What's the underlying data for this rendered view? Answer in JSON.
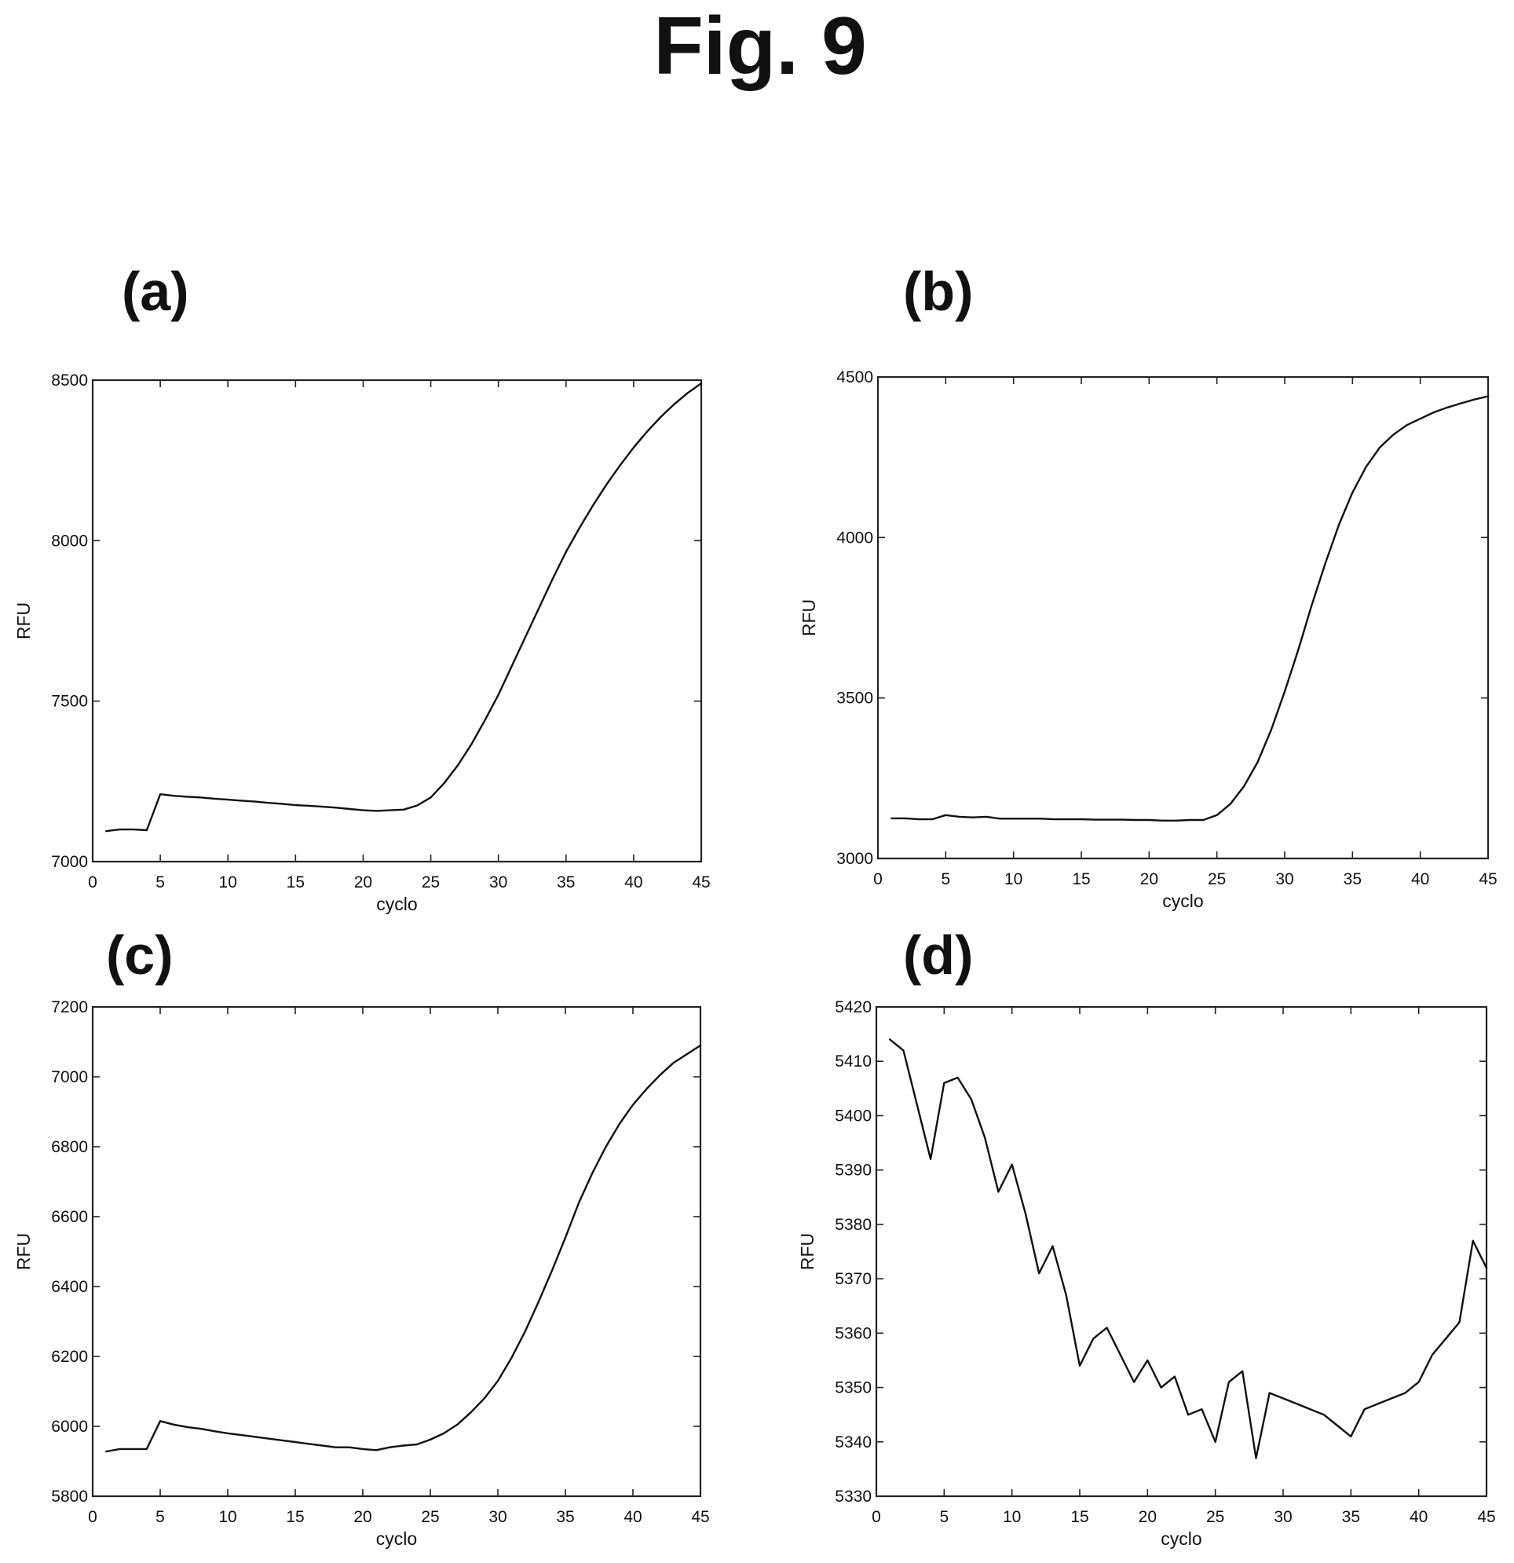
{
  "figure": {
    "title": "Fig. 9"
  },
  "chart_data": [
    {
      "type": "line",
      "panel_label": "(a)",
      "xlabel": "cyclo",
      "ylabel": "RFU",
      "xlim": [
        0,
        45
      ],
      "ylim": [
        7000,
        8500
      ],
      "xticks": [
        0,
        5,
        10,
        15,
        20,
        25,
        30,
        35,
        40,
        45
      ],
      "yticks": [
        7000,
        7500,
        8000,
        8500
      ],
      "grid": false,
      "series": [
        {
          "x": [
            1,
            2,
            3,
            4,
            5,
            6,
            7,
            8,
            9,
            10,
            11,
            12,
            13,
            14,
            15,
            16,
            17,
            18,
            19,
            20,
            21,
            22,
            23,
            24,
            25,
            26,
            27,
            28,
            29,
            30,
            31,
            32,
            33,
            34,
            35,
            36,
            37,
            38,
            39,
            40,
            41,
            42,
            43,
            44,
            45
          ],
          "values": [
            7095,
            7100,
            7100,
            7098,
            7210,
            7205,
            7202,
            7200,
            7196,
            7193,
            7190,
            7187,
            7183,
            7180,
            7176,
            7174,
            7171,
            7168,
            7164,
            7160,
            7158,
            7160,
            7162,
            7175,
            7200,
            7245,
            7300,
            7365,
            7440,
            7520,
            7610,
            7700,
            7790,
            7880,
            7965,
            8040,
            8110,
            8175,
            8235,
            8290,
            8340,
            8385,
            8425,
            8460,
            8490
          ]
        }
      ]
    },
    {
      "type": "line",
      "panel_label": "(b)",
      "xlabel": "cyclo",
      "ylabel": "RFU",
      "xlim": [
        0,
        45
      ],
      "ylim": [
        3000,
        4500
      ],
      "xticks": [
        0,
        5,
        10,
        15,
        20,
        25,
        30,
        35,
        40,
        45
      ],
      "yticks": [
        3000,
        3500,
        4000,
        4500
      ],
      "grid": false,
      "series": [
        {
          "x": [
            1,
            2,
            3,
            4,
            5,
            6,
            7,
            8,
            9,
            10,
            11,
            12,
            13,
            14,
            15,
            16,
            17,
            18,
            19,
            20,
            21,
            22,
            23,
            24,
            25,
            26,
            27,
            28,
            29,
            30,
            31,
            32,
            33,
            34,
            35,
            36,
            37,
            38,
            39,
            40,
            41,
            42,
            43,
            44,
            45
          ],
          "values": [
            3125,
            3125,
            3122,
            3122,
            3135,
            3130,
            3128,
            3130,
            3124,
            3124,
            3124,
            3124,
            3122,
            3122,
            3122,
            3121,
            3121,
            3121,
            3120,
            3120,
            3118,
            3118,
            3120,
            3120,
            3135,
            3170,
            3225,
            3300,
            3400,
            3520,
            3650,
            3790,
            3920,
            4040,
            4140,
            4220,
            4280,
            4320,
            4350,
            4370,
            4390,
            4405,
            4418,
            4430,
            4440
          ]
        }
      ]
    },
    {
      "type": "line",
      "panel_label": "(c)",
      "xlabel": "cyclo",
      "ylabel": "RFU",
      "xlim": [
        0,
        45
      ],
      "ylim": [
        5800,
        7200
      ],
      "xticks": [
        0,
        5,
        10,
        15,
        20,
        25,
        30,
        35,
        40,
        45
      ],
      "yticks": [
        5800,
        6000,
        6200,
        6400,
        6600,
        6800,
        7000,
        7200
      ],
      "grid": false,
      "series": [
        {
          "x": [
            1,
            2,
            3,
            4,
            5,
            6,
            7,
            8,
            9,
            10,
            11,
            12,
            13,
            14,
            15,
            16,
            17,
            18,
            19,
            20,
            21,
            22,
            23,
            24,
            25,
            26,
            27,
            28,
            29,
            30,
            31,
            32,
            33,
            34,
            35,
            36,
            37,
            38,
            39,
            40,
            41,
            42,
            43,
            44,
            45
          ],
          "values": [
            5928,
            5935,
            5935,
            5935,
            6015,
            6005,
            5998,
            5993,
            5986,
            5980,
            5975,
            5970,
            5965,
            5960,
            5955,
            5950,
            5945,
            5940,
            5940,
            5935,
            5932,
            5940,
            5945,
            5948,
            5962,
            5980,
            6005,
            6040,
            6080,
            6130,
            6195,
            6270,
            6355,
            6445,
            6540,
            6640,
            6725,
            6800,
            6865,
            6920,
            6965,
            7005,
            7040,
            7065,
            7090
          ]
        }
      ]
    },
    {
      "type": "line",
      "panel_label": "(d)",
      "xlabel": "cyclo",
      "ylabel": "RFU",
      "xlim": [
        0,
        45
      ],
      "ylim": [
        5330,
        5420
      ],
      "xticks": [
        0,
        5,
        10,
        15,
        20,
        25,
        30,
        35,
        40,
        45
      ],
      "yticks": [
        5330,
        5340,
        5350,
        5360,
        5370,
        5380,
        5390,
        5400,
        5410,
        5420
      ],
      "grid": false,
      "series": [
        {
          "x": [
            1,
            2,
            3,
            4,
            5,
            6,
            7,
            8,
            9,
            10,
            11,
            12,
            13,
            14,
            15,
            16,
            17,
            18,
            19,
            20,
            21,
            22,
            23,
            24,
            25,
            26,
            27,
            28,
            29,
            30,
            31,
            32,
            33,
            34,
            35,
            36,
            37,
            38,
            39,
            40,
            41,
            42,
            43,
            44,
            45
          ],
          "values": [
            5414,
            5412,
            5402,
            5392,
            5406,
            5407,
            5403,
            5396,
            5386,
            5391,
            5382,
            5371,
            5376,
            5367,
            5354,
            5359,
            5361,
            5356,
            5351,
            5355,
            5350,
            5352,
            5345,
            5346,
            5340,
            5351,
            5353,
            5337,
            5349,
            5348,
            5347,
            5346,
            5345,
            5343,
            5341,
            5346,
            5347,
            5348,
            5349,
            5351,
            5356,
            5359,
            5362,
            5377,
            5372
          ]
        }
      ]
    }
  ]
}
